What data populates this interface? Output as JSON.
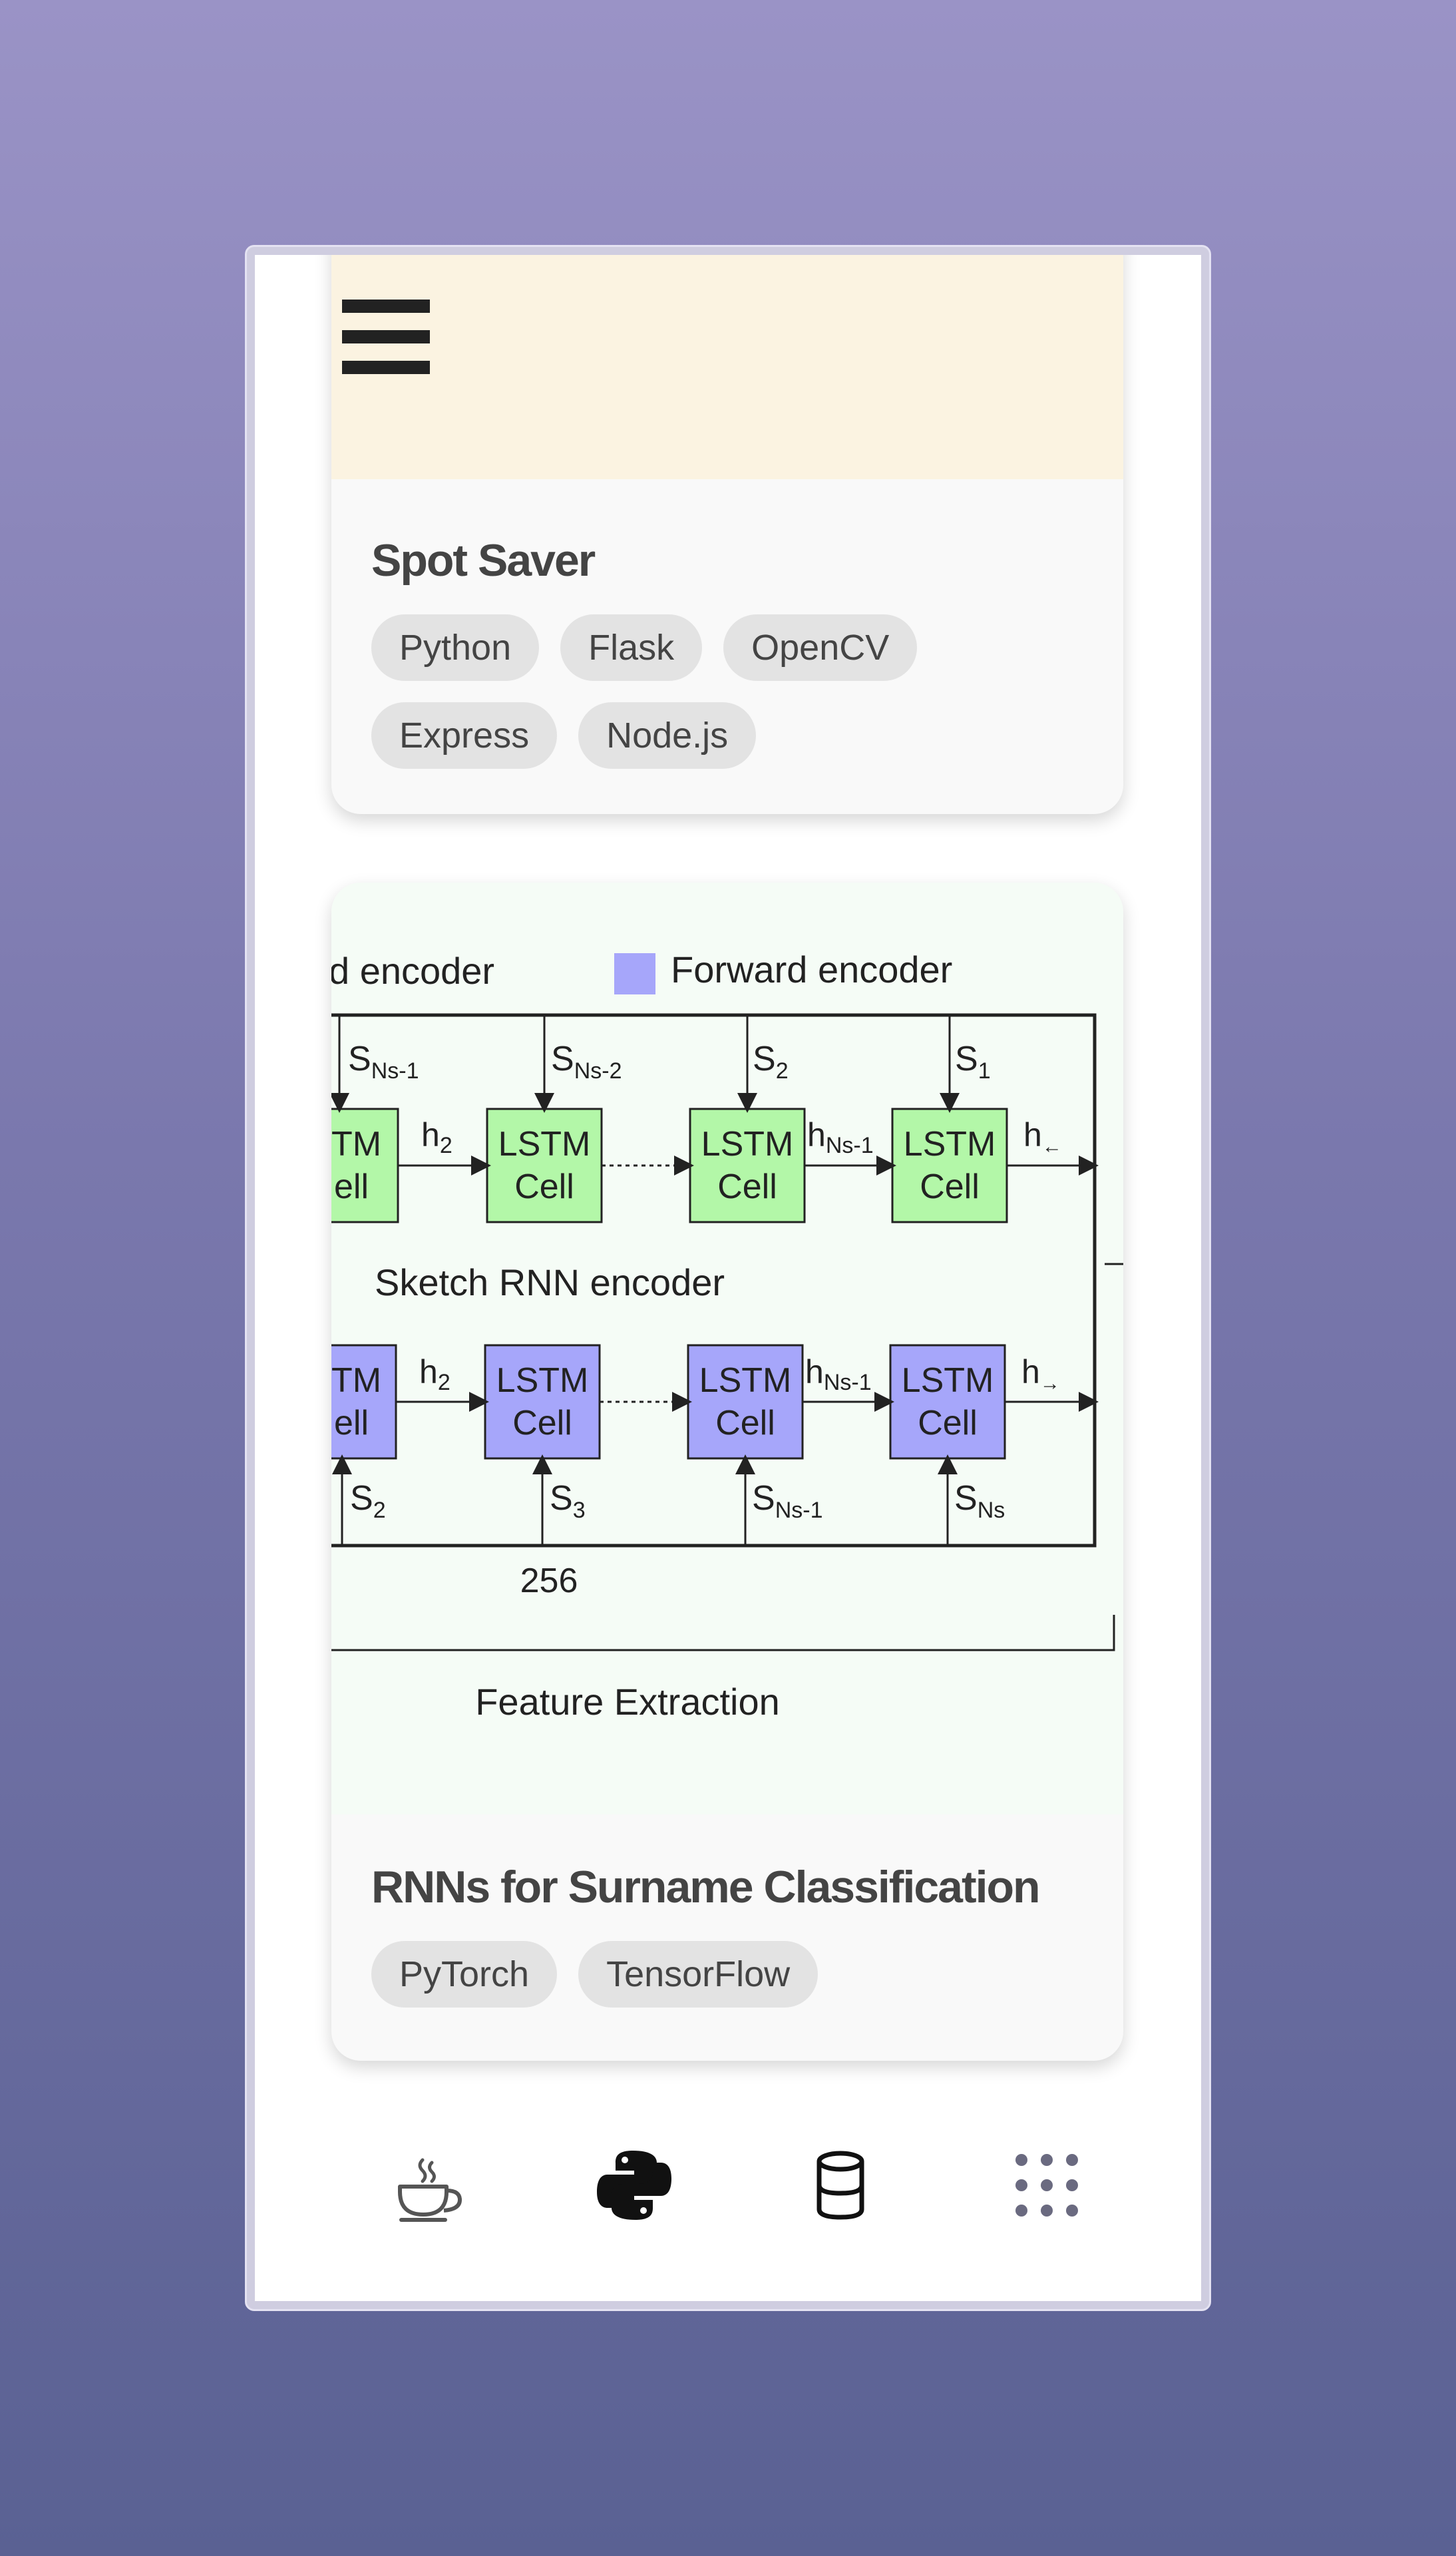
{
  "projects": [
    {
      "title": "Spot Saver",
      "tags": [
        "Python",
        "Flask",
        "OpenCV",
        "Express",
        "Node.js"
      ]
    },
    {
      "title": "RNNs for Surname Classification",
      "tags": [
        "PyTorch",
        "TensorFlow"
      ],
      "diagram": {
        "legend_left": "d encoder",
        "legend_right": "Forward encoder",
        "top_inputs": [
          "S",
          "S",
          "S",
          "S"
        ],
        "top_input_subs": [
          "Ns-1",
          "Ns-2",
          "2",
          "1"
        ],
        "cell_line1": "LSTM",
        "cell_line2": "Cell",
        "cell_partial_line1": "TM",
        "cell_partial_line2": "ell",
        "hidden_labels": [
          "h",
          "h"
        ],
        "hidden_subs": [
          "2",
          "Ns-1"
        ],
        "output_top": "h",
        "output_top_sub": "←",
        "output_bottom": "h",
        "output_bottom_sub": "→",
        "middle_label": "Sketch RNN encoder",
        "bottom_inputs": [
          "S",
          "S",
          "S",
          "S"
        ],
        "bottom_input_subs": [
          "2",
          "3",
          "Ns-1",
          "Ns"
        ],
        "dim_label": "256",
        "section_label": "Feature Extraction"
      }
    }
  ],
  "colors": {
    "forward_cell": "#a6a6fa",
    "backward_cell": "#b3f7a8",
    "banner": "#fbf3e1"
  },
  "nav": [
    {
      "icon": "coffee-cup-icon"
    },
    {
      "icon": "python-icon"
    },
    {
      "icon": "database-icon"
    },
    {
      "icon": "grid-dots-icon"
    }
  ]
}
